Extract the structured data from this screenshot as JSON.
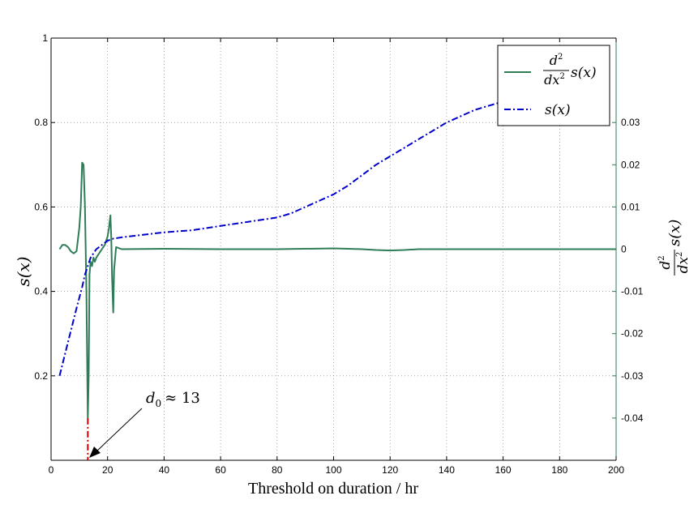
{
  "chart_data": {
    "type": "line",
    "xlabel": "Threshold on duration / hr",
    "ylabel": "s(x)",
    "y2label_num": "d",
    "y2label_num_sup": "2",
    "y2label_den": "dx",
    "y2label_den_sup": "2",
    "y2label_fn": "s(x)",
    "xlim": [
      0,
      200
    ],
    "ylim": [
      0,
      1
    ],
    "y2lim": [
      -0.05,
      0.05
    ],
    "xticks": [
      "0",
      "20",
      "40",
      "60",
      "80",
      "100",
      "120",
      "140",
      "160",
      "180",
      "200"
    ],
    "yticks": [
      "0.2",
      "0.4",
      "0.6",
      "0.8",
      "1"
    ],
    "y2ticks": [
      "-0.04",
      "-0.03",
      "-0.02",
      "-0.01",
      "0",
      "0.01",
      "0.02",
      "0.03"
    ],
    "grid": true,
    "legend_position": "top-right",
    "colors": {
      "second_derivative": "#2e7d57",
      "s": "#0000cc",
      "marker": "#dd0000",
      "left_axis": "#000000",
      "right_axis": "#2e7d57"
    },
    "series": [
      {
        "name": "s(x)",
        "axis": "left",
        "style": "dash-dot",
        "x": [
          3,
          6,
          9,
          11,
          12,
          13,
          14,
          16,
          18,
          20,
          22,
          25,
          30,
          40,
          50,
          60,
          70,
          80,
          85,
          90,
          95,
          100,
          105,
          110,
          115,
          120,
          125,
          130,
          135,
          140,
          145,
          150,
          155,
          160,
          165
        ],
        "y": [
          0.2,
          0.28,
          0.36,
          0.41,
          0.44,
          0.46,
          0.48,
          0.5,
          0.51,
          0.52,
          0.525,
          0.528,
          0.532,
          0.54,
          0.545,
          0.555,
          0.565,
          0.575,
          0.585,
          0.6,
          0.615,
          0.63,
          0.65,
          0.675,
          0.7,
          0.72,
          0.74,
          0.76,
          0.78,
          0.8,
          0.815,
          0.83,
          0.84,
          0.85,
          0.858
        ]
      },
      {
        "name": "d2/dx2 s(x)",
        "axis": "right",
        "style": "solid",
        "x": [
          3,
          4,
          5,
          6,
          7,
          8,
          9,
          10,
          10.5,
          11,
          11.5,
          12,
          12.5,
          13,
          13.3,
          13.6,
          14,
          14.5,
          15,
          15.5,
          16,
          17,
          18,
          19,
          20,
          20.5,
          21,
          21.3,
          21.6,
          22,
          22.3,
          23,
          25,
          40,
          60,
          80,
          100,
          110,
          115,
          120,
          125,
          130,
          160,
          200
        ],
        "y": [
          0,
          0.001,
          0.001,
          0.0005,
          -0.0005,
          -0.001,
          -0.0005,
          0.005,
          0.01,
          0.0205,
          0.02,
          0.01,
          -0.01,
          -0.04,
          -0.03,
          -0.006,
          -0.003,
          -0.004,
          -0.002,
          -0.003,
          -0.002,
          -0.001,
          0,
          0.001,
          0.003,
          0.005,
          0.008,
          0.003,
          -0.007,
          -0.015,
          -0.005,
          0.0005,
          0,
          0.0001,
          0,
          0,
          0.0002,
          0,
          -0.0002,
          -0.0003,
          -0.0002,
          0,
          0,
          0
        ]
      }
    ],
    "legend": [
      {
        "kind": "derivative",
        "num": "d",
        "num_sup": "2",
        "den": "dx",
        "den_sup": "2",
        "fn": "s(x)"
      },
      {
        "kind": "plain",
        "fn": "s(x)"
      }
    ],
    "annotations": [
      {
        "text_main": "d",
        "text_sub": "0",
        "text_rest": "≈ 13",
        "x": 13,
        "y2": -0.05
      }
    ]
  }
}
